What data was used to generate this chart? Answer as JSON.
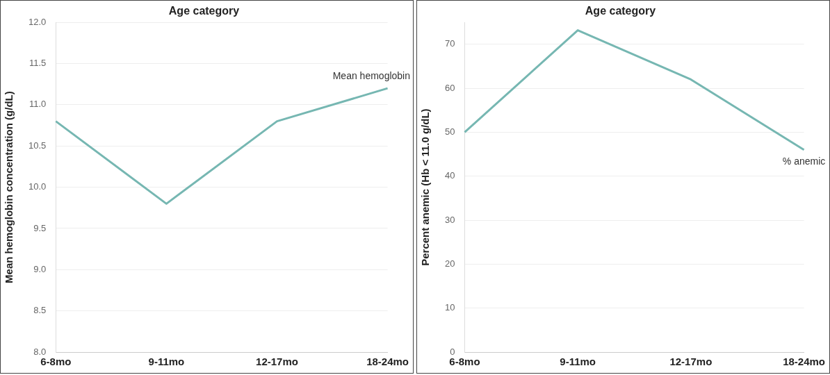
{
  "chart_data": [
    {
      "type": "line",
      "title": "Age category",
      "ylabel": "Mean hemoglobin concentration (g/dL)",
      "categories": [
        "6-8mo",
        "9-11mo",
        "12-17mo",
        "18-24mo"
      ],
      "series": [
        {
          "name": "Mean hemoglobin",
          "color": "#76b7b2",
          "values": [
            10.8,
            9.8,
            10.8,
            11.2
          ]
        }
      ],
      "ylim": [
        8,
        12
      ],
      "yticks": [
        {
          "value": 8,
          "label": "8.0"
        },
        {
          "value": 8.5,
          "label": "8.5"
        },
        {
          "value": 9,
          "label": "9.0"
        },
        {
          "value": 9.5,
          "label": "9.5"
        },
        {
          "value": 10,
          "label": "10.0"
        },
        {
          "value": 10.5,
          "label": "10.5"
        },
        {
          "value": 11,
          "label": "11.0"
        },
        {
          "value": 11.5,
          "label": "11.5"
        },
        {
          "value": 12,
          "label": "12.0"
        }
      ],
      "grid": "y",
      "legend": false,
      "marker": "none",
      "line_style": "solid"
    },
    {
      "type": "line",
      "title": "Age category",
      "ylabel": "Percent anemic (Hb < 11.0 g/dL)",
      "categories": [
        "6-8mo",
        "9-11mo",
        "12-17mo",
        "18-24mo"
      ],
      "series": [
        {
          "name": "% anemic",
          "color": "#76b7b2",
          "values": [
            50,
            73.2,
            62,
            46
          ]
        }
      ],
      "ylim": [
        0,
        75
      ],
      "yticks": [
        0,
        10,
        20,
        30,
        40,
        50,
        60,
        70
      ],
      "grid": "y",
      "legend": false,
      "marker": "none",
      "line_style": "solid"
    }
  ]
}
